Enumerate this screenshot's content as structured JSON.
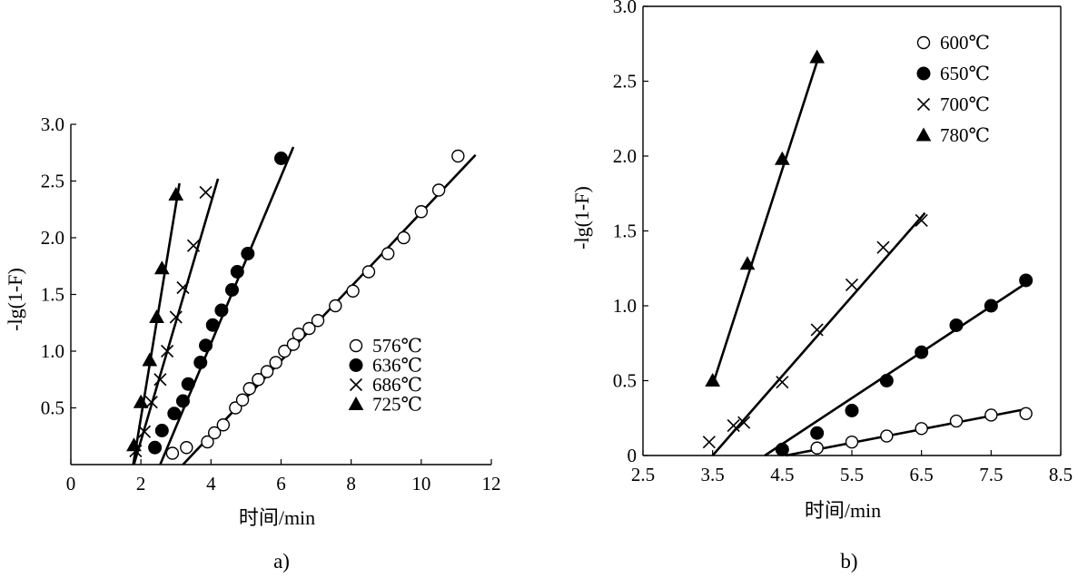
{
  "chart_data": [
    {
      "panel_label": "a)",
      "type": "scatter",
      "xlabel": "时间/min",
      "ylabel": "-lg(1-F)",
      "xlim": [
        0,
        12
      ],
      "ylim": [
        0,
        3.0
      ],
      "xticks": [
        0,
        2,
        4,
        6,
        8,
        10,
        12
      ],
      "xtick_labels": [
        "0",
        "2",
        "4",
        "6",
        "8",
        "10",
        "12"
      ],
      "yticks": [
        0.5,
        1.0,
        1.5,
        2.0,
        2.5,
        3.0
      ],
      "ytick_labels": [
        "0.5",
        "1.0",
        "1.5",
        "2.0",
        "2.5",
        "3.0"
      ],
      "legend_position": "center-right",
      "series": [
        {
          "name": "576℃",
          "marker": "open-circle",
          "x": [
            2.9,
            3.3,
            3.9,
            4.1,
            4.35,
            4.7,
            4.9,
            5.1,
            5.35,
            5.6,
            5.85,
            6.1,
            6.35,
            6.5,
            6.8,
            7.05,
            7.55,
            8.05,
            8.5,
            9.05,
            9.5,
            10.0,
            10.5,
            11.05
          ],
          "y": [
            0.1,
            0.15,
            0.2,
            0.28,
            0.35,
            0.5,
            0.57,
            0.67,
            0.75,
            0.82,
            0.9,
            1.0,
            1.06,
            1.15,
            1.2,
            1.27,
            1.4,
            1.53,
            1.7,
            1.86,
            2.0,
            2.23,
            2.42,
            2.72
          ],
          "fit_line": {
            "x": [
              3.2,
              11.55
            ],
            "y": [
              0.0,
              2.73
            ]
          }
        },
        {
          "name": "636℃",
          "marker": "filled-circle",
          "x": [
            2.4,
            2.6,
            2.95,
            3.2,
            3.35,
            3.7,
            3.85,
            4.05,
            4.3,
            4.6,
            4.75,
            5.05,
            6.0
          ],
          "y": [
            0.15,
            0.3,
            0.45,
            0.56,
            0.71,
            0.9,
            1.05,
            1.23,
            1.36,
            1.54,
            1.7,
            1.86,
            2.7
          ]
        },
        {
          "name": "686℃",
          "marker": "cross",
          "x": [
            1.85,
            2.1,
            2.3,
            2.55,
            2.75,
            3.0,
            3.2,
            3.5,
            3.85
          ],
          "y": [
            0.12,
            0.29,
            0.55,
            0.75,
            1.0,
            1.3,
            1.56,
            1.93,
            2.4
          ]
        },
        {
          "name": "725℃",
          "marker": "filled-triangle",
          "x": [
            1.8,
            2.0,
            2.25,
            2.45,
            2.6,
            3.0
          ],
          "y": [
            0.17,
            0.55,
            0.92,
            1.3,
            1.73,
            2.38
          ]
        }
      ],
      "fit_lines_extra": [
        {
          "series": "636℃",
          "x": [
            2.55,
            6.35
          ],
          "y": [
            0.0,
            2.8
          ]
        },
        {
          "series": "686℃",
          "x": [
            1.8,
            4.2
          ],
          "y": [
            0.0,
            2.52
          ]
        },
        {
          "series": "725℃",
          "x": [
            1.78,
            3.1
          ],
          "y": [
            0.0,
            2.48
          ]
        }
      ]
    },
    {
      "panel_label": "b)",
      "type": "scatter",
      "xlabel": "时间/min",
      "ylabel": "-lg(1-F)",
      "xlim": [
        2.5,
        8.5
      ],
      "ylim": [
        0,
        3.0
      ],
      "xticks": [
        2.5,
        3.5,
        4.5,
        5.5,
        6.5,
        7.5,
        8.5
      ],
      "xtick_labels": [
        "2.5",
        "3.5",
        "4.5",
        "5.5",
        "6.5",
        "7.5",
        "8.5"
      ],
      "yticks": [
        0,
        0.5,
        1.0,
        1.5,
        2.0,
        2.5,
        3.0
      ],
      "ytick_labels": [
        "0",
        "0.5",
        "1.0",
        "1.5",
        "2.0",
        "2.5",
        "3.0"
      ],
      "legend_position": "top-right",
      "series": [
        {
          "name": "600℃",
          "marker": "open-circle",
          "x": [
            5.0,
            5.5,
            6.0,
            6.5,
            7.0,
            7.5,
            8.0
          ],
          "y": [
            0.05,
            0.09,
            0.13,
            0.18,
            0.23,
            0.27,
            0.28
          ],
          "fit_line": {
            "x": [
              4.55,
              8.0
            ],
            "y": [
              0.0,
              0.31
            ]
          }
        },
        {
          "name": "650℃",
          "marker": "filled-circle",
          "x": [
            4.5,
            5.0,
            5.5,
            6.0,
            6.5,
            7.0,
            7.5,
            8.0
          ],
          "y": [
            0.04,
            0.15,
            0.3,
            0.5,
            0.69,
            0.87,
            1.0,
            1.17
          ],
          "fit_line": {
            "x": [
              4.25,
              8.0
            ],
            "y": [
              0.0,
              1.15
            ]
          }
        },
        {
          "name": "700℃",
          "marker": "cross",
          "x": [
            3.45,
            3.8,
            3.95,
            4.5,
            5.0,
            5.5,
            5.95,
            6.5
          ],
          "y": [
            0.09,
            0.2,
            0.22,
            0.49,
            0.84,
            1.14,
            1.39,
            1.57
          ],
          "fit_line": {
            "x": [
              3.5,
              6.55
            ],
            "y": [
              0.0,
              1.62
            ]
          }
        },
        {
          "name": "780℃",
          "marker": "filled-triangle",
          "x": [
            3.5,
            4.0,
            4.5,
            5.0
          ],
          "y": [
            0.5,
            1.28,
            1.98,
            2.66
          ],
          "fit_line": {
            "x": [
              3.5,
              5.0
            ],
            "y": [
              0.47,
              2.63
            ]
          }
        }
      ]
    }
  ]
}
